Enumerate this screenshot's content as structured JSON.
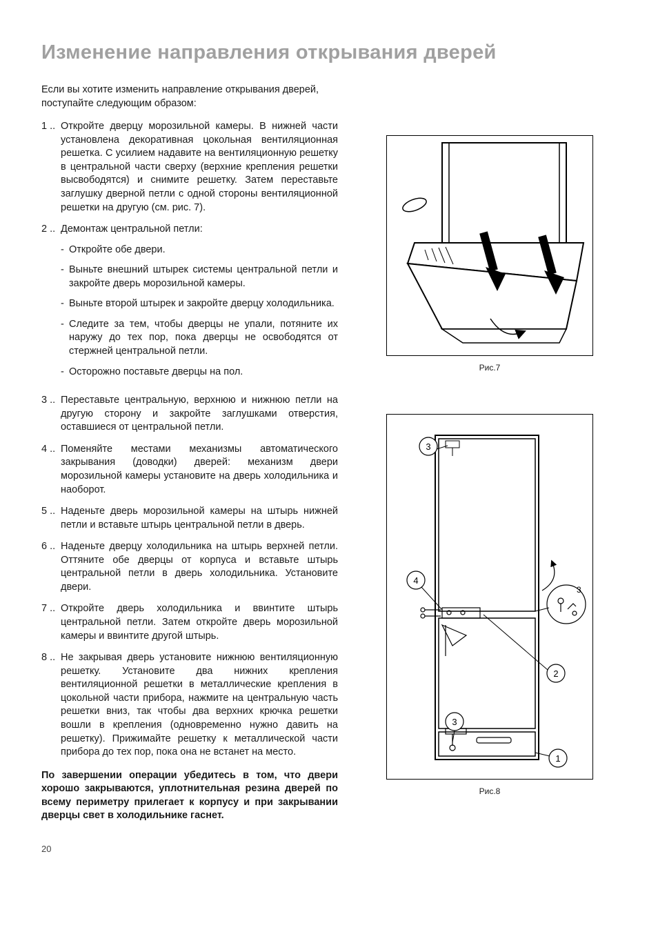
{
  "title": "Изменение направления открывания дверей",
  "intro": "Если вы хотите изменить направление открывания дверей, поступайте следующим образом:",
  "steps": [
    {
      "num": "1 ..",
      "text": "Откройте дверцу морозильной камеры. В нижней части установлена декоративная цокольная вентиляционная решетка. С усилием надавите на вентиляционную решетку в центральной части сверху (верхние крепления решетки высвободятся) и снимите решетку. Затем переставьте заглушку дверной петли с одной стороны вентиляционной решетки на другую (см. рис. 7)."
    },
    {
      "num": "2 ..",
      "text": "Демонтаж центральной петли:",
      "sub": [
        "Откройте обе двери.",
        "Выньте внешний штырек системы центральной петли и закройте дверь морозильной камеры.",
        "Выньте второй штырек и закройте дверцу холодильника.",
        "Следите за тем, чтобы дверцы не упали, потяните их наружу до тех пор, пока дверцы не освободятся от стержней центральной петли.",
        "Осторожно поставьте дверцы на пол."
      ]
    },
    {
      "num": "3 ..",
      "text": "Переставьте центральную, верхнюю и нижнюю петли на другую сторону и закройте заглушками отверстия, оставшиеся от центральной петли."
    },
    {
      "num": "4 ..",
      "text": "Поменяйте местами механизмы автоматического закрывания (доводки) дверей: механизм двери морозильной камеры установите на дверь холодильника и наоборот."
    },
    {
      "num": "5 ..",
      "text": "Наденьте дверь морозильной камеры на штырь нижней петли и вставьте штырь центральной петли в дверь."
    },
    {
      "num": "6 ..",
      "text": "Наденьте дверцу холодильника на штырь верхней петли. Оттяните обе дверцы от корпуса и вставьте штырь центральной петли в дверь холодильника. Установите двери."
    },
    {
      "num": "7 ..",
      "text": "Откройте дверь холодильника и ввинтите штырь центральной петли. Затем откройте дверь морозильной камеры и ввинтите другой штырь."
    },
    {
      "num": "8 ..",
      "text": "Не закрывая дверь установите нижнюю вентиляционную решетку. Установите два нижних крепления вентиляционной решетки в металлические крепления в цокольной части прибора, нажмите на центральную часть решетки вниз, так чтобы два верхних крючка решетки вошли в крепления (одновременно нужно давить на решетку). Прижимайте решетку к металлической части прибора до тех пор, пока она не встанет на место."
    }
  ],
  "closing": "По завершении операции убедитесь в том, что двери хорошо закрываются, уплотнительная резина дверей по всему периметру прилегает к корпусу и при закрывании дверцы свет в холодильнике гаснет.",
  "figures": {
    "fig1_caption": "Рис.7",
    "fig2_caption": "Рис.8",
    "fig2_labels": [
      "1",
      "2",
      "3",
      "4"
    ]
  },
  "page_number": "20",
  "colors": {
    "title_gray": "#a0a0a0",
    "text": "#1a1a1a",
    "line": "#000000",
    "bg": "#ffffff"
  }
}
